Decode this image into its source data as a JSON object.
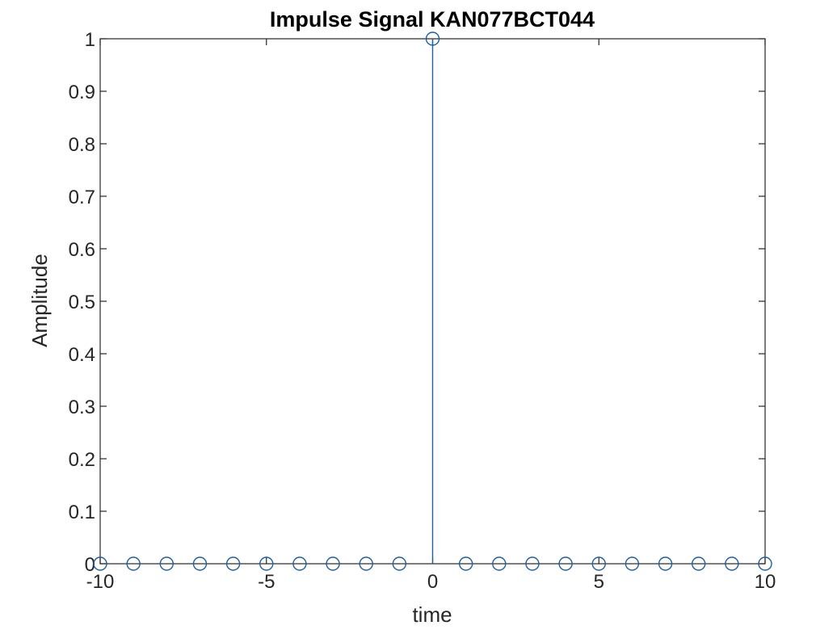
{
  "chart_data": {
    "type": "stem",
    "title": "Impulse Signal KAN077BCT044",
    "xlabel": "time",
    "ylabel": "Amplitude",
    "xlim": [
      -10,
      10
    ],
    "ylim": [
      0,
      1
    ],
    "x_ticks": [
      -10,
      -5,
      0,
      5,
      10
    ],
    "x_tick_labels": [
      "-10",
      "-5",
      "0",
      "5",
      "10"
    ],
    "y_ticks": [
      0,
      0.1,
      0.2,
      0.3,
      0.4,
      0.5,
      0.6,
      0.7,
      0.8,
      0.9,
      1
    ],
    "y_tick_labels": [
      "0",
      "0.1",
      "0.2",
      "0.3",
      "0.4",
      "0.5",
      "0.6",
      "0.7",
      "0.8",
      "0.9",
      "1"
    ],
    "grid": false,
    "box": true,
    "marker": "circle",
    "series": [
      {
        "x": [
          -10,
          -9,
          -8,
          -7,
          -6,
          -5,
          -4,
          -3,
          -2,
          -1,
          0,
          1,
          2,
          3,
          4,
          5,
          6,
          7,
          8,
          9,
          10
        ],
        "y": [
          0,
          0,
          0,
          0,
          0,
          0,
          0,
          0,
          0,
          0,
          1,
          0,
          0,
          0,
          0,
          0,
          0,
          0,
          0,
          0,
          0
        ],
        "color": "#1f5f9e"
      }
    ],
    "axis_color": "#262626"
  }
}
